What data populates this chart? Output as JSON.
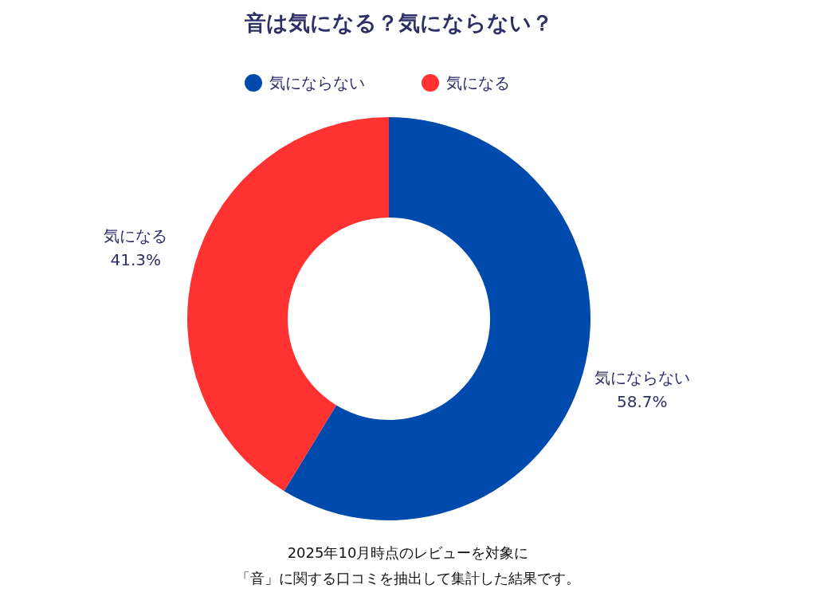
{
  "chart_data": {
    "type": "donut",
    "title": "音は気になる？気にならない？",
    "categories": [
      "気にならない",
      "気になる"
    ],
    "values": [
      58.7,
      41.3
    ],
    "colors": [
      "#004aad",
      "#ff3131"
    ],
    "legend": "top",
    "value_labels": [
      "58.7%",
      "41.3%"
    ],
    "annotations": [
      "2025年10月時点のレビューを対象に",
      "「音」に関する口コミを抽出して集計した結果です。"
    ]
  }
}
